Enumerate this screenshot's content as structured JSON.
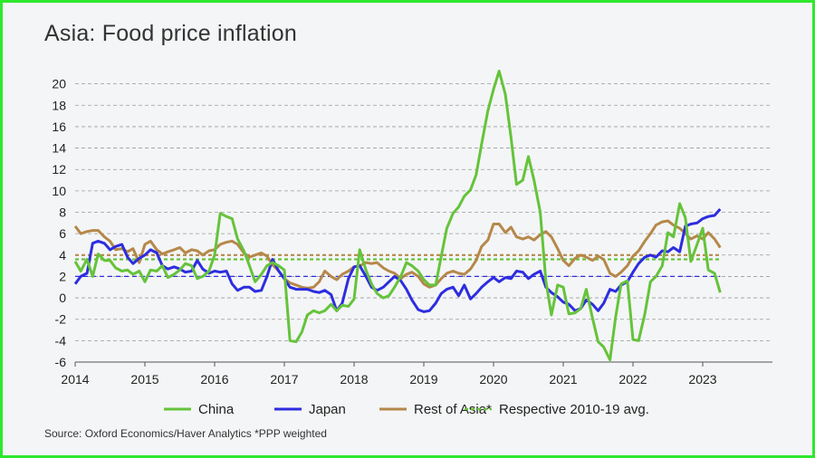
{
  "chart_data": {
    "type": "line",
    "title": "Asia: Food price inflation",
    "source": "Source: Oxford Economics/Haver Analytics *PPP weighted",
    "xlabel": "",
    "ylabel": "",
    "ylim": [
      -6,
      22
    ],
    "yticks": [
      "-6",
      "-4",
      "-2",
      "0",
      "2",
      "4",
      "6",
      "8",
      "10",
      "12",
      "14",
      "16",
      "18",
      "20"
    ],
    "xlim": [
      2014,
      2024
    ],
    "xticks": [
      "2014",
      "2015",
      "2016",
      "2017",
      "2018",
      "2019",
      "2020",
      "2021",
      "2022",
      "2023"
    ],
    "grid": "horizontal dashed",
    "legend_position": "bottom",
    "series": [
      {
        "name": "China",
        "color": "#65c33b",
        "x": [
          2014.0,
          2014.08,
          2014.17,
          2014.25,
          2014.33,
          2014.42,
          2014.5,
          2014.58,
          2014.67,
          2014.75,
          2014.83,
          2014.92,
          2015.0,
          2015.08,
          2015.17,
          2015.25,
          2015.33,
          2015.42,
          2015.5,
          2015.58,
          2015.67,
          2015.75,
          2015.83,
          2015.92,
          2016.0,
          2016.08,
          2016.17,
          2016.25,
          2016.33,
          2016.42,
          2016.5,
          2016.58,
          2016.67,
          2016.75,
          2016.83,
          2016.92,
          2017.0,
          2017.08,
          2017.17,
          2017.25,
          2017.33,
          2017.42,
          2017.5,
          2017.58,
          2017.67,
          2017.75,
          2017.83,
          2017.92,
          2018.0,
          2018.08,
          2018.17,
          2018.25,
          2018.33,
          2018.42,
          2018.5,
          2018.58,
          2018.67,
          2018.75,
          2018.83,
          2018.92,
          2019.0,
          2019.08,
          2019.17,
          2019.25,
          2019.33,
          2019.42,
          2019.5,
          2019.58,
          2019.67,
          2019.75,
          2019.83,
          2019.92,
          2020.0,
          2020.08,
          2020.17,
          2020.25,
          2020.33,
          2020.42,
          2020.5,
          2020.58,
          2020.67,
          2020.75,
          2020.83,
          2020.92,
          2021.0,
          2021.08,
          2021.17,
          2021.25,
          2021.33,
          2021.42,
          2021.5,
          2021.58,
          2021.67,
          2021.75,
          2021.83,
          2021.92,
          2022.0,
          2022.08,
          2022.17,
          2022.25,
          2022.33,
          2022.42,
          2022.5,
          2022.58,
          2022.67,
          2022.75,
          2022.83,
          2022.92,
          2023.0,
          2023.08,
          2023.17,
          2023.25
        ],
        "values": [
          3.4,
          2.5,
          3.6,
          2.0,
          4.1,
          3.5,
          3.5,
          2.8,
          2.5,
          2.6,
          2.2,
          2.5,
          1.5,
          2.6,
          2.5,
          3.0,
          1.9,
          2.2,
          2.6,
          3.2,
          3.0,
          1.8,
          2.0,
          2.5,
          4.0,
          7.9,
          7.6,
          7.4,
          5.5,
          4.4,
          3.0,
          1.5,
          2.2,
          3.0,
          3.3,
          3.0,
          2.6,
          -4.0,
          -4.1,
          -3.2,
          -1.6,
          -1.2,
          -1.4,
          -1.2,
          -0.6,
          -1.2,
          -0.7,
          -0.8,
          -0.1,
          4.5,
          2.6,
          1.3,
          0.4,
          0.0,
          0.2,
          1.0,
          2.0,
          3.3,
          3.0,
          2.5,
          1.7,
          1.2,
          1.2,
          3.9,
          6.5,
          7.9,
          8.5,
          9.5,
          10.1,
          11.5,
          14.4,
          17.5,
          19.5,
          21.2,
          19.0,
          15.0,
          10.6,
          11.0,
          13.2,
          11.0,
          8.0,
          1.6,
          -1.6,
          1.2,
          1.0,
          -1.5,
          -1.4,
          -1.0,
          0.8,
          -1.9,
          -4.1,
          -4.6,
          -5.8,
          -1.8,
          1.3,
          1.6,
          -3.9,
          -4.0,
          -1.5,
          1.5,
          2.0,
          3.0,
          6.1,
          5.7,
          8.8,
          7.5,
          3.4,
          5.0,
          6.5,
          2.6,
          2.3,
          0.5
        ]
      },
      {
        "name": "Japan",
        "color": "#2d2de0",
        "x": [
          2014.0,
          2014.08,
          2014.17,
          2014.25,
          2014.33,
          2014.42,
          2014.5,
          2014.58,
          2014.67,
          2014.75,
          2014.83,
          2014.92,
          2015.0,
          2015.08,
          2015.17,
          2015.25,
          2015.33,
          2015.42,
          2015.5,
          2015.58,
          2015.67,
          2015.75,
          2015.83,
          2015.92,
          2016.0,
          2016.08,
          2016.17,
          2016.25,
          2016.33,
          2016.42,
          2016.5,
          2016.58,
          2016.67,
          2016.75,
          2016.83,
          2016.92,
          2017.0,
          2017.08,
          2017.17,
          2017.25,
          2017.33,
          2017.42,
          2017.5,
          2017.58,
          2017.67,
          2017.75,
          2017.83,
          2017.92,
          2018.0,
          2018.08,
          2018.17,
          2018.25,
          2018.33,
          2018.42,
          2018.5,
          2018.58,
          2018.67,
          2018.75,
          2018.83,
          2018.92,
          2019.0,
          2019.08,
          2019.17,
          2019.25,
          2019.33,
          2019.42,
          2019.5,
          2019.58,
          2019.67,
          2019.75,
          2019.83,
          2019.92,
          2020.0,
          2020.08,
          2020.17,
          2020.25,
          2020.33,
          2020.42,
          2020.5,
          2020.58,
          2020.67,
          2020.75,
          2020.83,
          2020.92,
          2021.0,
          2021.08,
          2021.17,
          2021.25,
          2021.33,
          2021.42,
          2021.5,
          2021.58,
          2021.67,
          2021.75,
          2021.83,
          2021.92,
          2022.0,
          2022.08,
          2022.17,
          2022.25,
          2022.33,
          2022.42,
          2022.5,
          2022.58,
          2022.67,
          2022.75,
          2022.83,
          2022.92,
          2023.0,
          2023.08,
          2023.17,
          2023.25
        ],
        "values": [
          1.3,
          2.0,
          2.3,
          5.1,
          5.3,
          5.1,
          4.5,
          4.8,
          5.0,
          3.8,
          3.2,
          3.7,
          4.0,
          4.5,
          4.2,
          3.0,
          2.7,
          2.9,
          2.7,
          2.4,
          2.5,
          3.5,
          2.7,
          2.3,
          2.5,
          2.4,
          2.5,
          1.3,
          0.7,
          1.0,
          1.0,
          0.6,
          0.7,
          2.0,
          3.6,
          2.5,
          1.8,
          1.0,
          0.8,
          0.8,
          0.8,
          0.6,
          0.5,
          0.7,
          0.3,
          -1.2,
          -0.5,
          1.8,
          2.9,
          3.0,
          2.0,
          1.0,
          0.7,
          1.0,
          1.5,
          2.0,
          1.6,
          0.8,
          -0.2,
          -1.1,
          -1.3,
          -1.2,
          -0.5,
          0.4,
          0.8,
          1.0,
          0.2,
          1.2,
          -0.1,
          0.4,
          1.0,
          1.5,
          1.9,
          1.5,
          1.9,
          1.8,
          2.5,
          2.4,
          1.8,
          2.2,
          2.5,
          1.0,
          0.5,
          0.1,
          -0.4,
          -0.6,
          -1.2,
          -1.0,
          -0.2,
          -0.6,
          -1.2,
          -0.5,
          0.8,
          0.6,
          1.2,
          1.5,
          2.4,
          3.2,
          3.8,
          4.0,
          3.8,
          4.4,
          4.3,
          4.7,
          4.3,
          6.7,
          6.9,
          7.0,
          7.4,
          7.6,
          7.7,
          8.3
        ]
      },
      {
        "name": "Rest of Asia*",
        "color": "#b5884a",
        "x": [
          2014.0,
          2014.08,
          2014.17,
          2014.25,
          2014.33,
          2014.42,
          2014.5,
          2014.58,
          2014.67,
          2014.75,
          2014.83,
          2014.92,
          2015.0,
          2015.08,
          2015.17,
          2015.25,
          2015.33,
          2015.42,
          2015.5,
          2015.58,
          2015.67,
          2015.75,
          2015.83,
          2015.92,
          2016.0,
          2016.08,
          2016.17,
          2016.25,
          2016.33,
          2016.42,
          2016.5,
          2016.58,
          2016.67,
          2016.75,
          2016.83,
          2016.92,
          2017.0,
          2017.08,
          2017.17,
          2017.25,
          2017.33,
          2017.42,
          2017.5,
          2017.58,
          2017.67,
          2017.75,
          2017.83,
          2017.92,
          2018.0,
          2018.08,
          2018.17,
          2018.25,
          2018.33,
          2018.42,
          2018.5,
          2018.58,
          2018.67,
          2018.75,
          2018.83,
          2018.92,
          2019.0,
          2019.08,
          2019.17,
          2019.25,
          2019.33,
          2019.42,
          2019.5,
          2019.58,
          2019.67,
          2019.75,
          2019.83,
          2019.92,
          2020.0,
          2020.08,
          2020.17,
          2020.25,
          2020.33,
          2020.42,
          2020.5,
          2020.58,
          2020.67,
          2020.75,
          2020.83,
          2020.92,
          2021.0,
          2021.08,
          2021.17,
          2021.25,
          2021.33,
          2021.42,
          2021.5,
          2021.58,
          2021.67,
          2021.75,
          2021.83,
          2021.92,
          2022.0,
          2022.08,
          2022.17,
          2022.25,
          2022.33,
          2022.42,
          2022.5,
          2022.58,
          2022.67,
          2022.75,
          2022.83,
          2022.92,
          2023.0,
          2023.08,
          2023.17,
          2023.25
        ],
        "values": [
          6.7,
          6.0,
          6.2,
          6.3,
          6.3,
          5.7,
          5.3,
          4.5,
          4.6,
          4.3,
          4.6,
          3.3,
          5.0,
          5.3,
          4.5,
          4.1,
          4.3,
          4.5,
          4.7,
          4.2,
          4.5,
          4.4,
          4.0,
          4.4,
          4.5,
          5.0,
          5.2,
          5.3,
          5.0,
          4.2,
          3.8,
          4.0,
          4.2,
          3.9,
          3.1,
          2.5,
          1.8,
          1.4,
          1.2,
          1.0,
          0.9,
          1.0,
          1.5,
          2.5,
          2.0,
          1.7,
          2.2,
          2.5,
          2.9,
          3.0,
          3.3,
          3.2,
          3.3,
          2.8,
          2.5,
          2.3,
          1.8,
          2.2,
          2.4,
          2.0,
          1.3,
          1.0,
          1.2,
          1.8,
          2.3,
          2.5,
          2.3,
          2.2,
          2.7,
          3.5,
          4.8,
          5.4,
          6.9,
          6.9,
          6.1,
          6.6,
          5.7,
          5.5,
          5.7,
          5.4,
          5.9,
          6.2,
          5.7,
          4.6,
          3.5,
          3.0,
          3.7,
          4.0,
          3.8,
          3.5,
          3.9,
          3.6,
          2.3,
          2.0,
          2.4,
          3.0,
          3.9,
          4.4,
          5.3,
          6.0,
          6.8,
          7.1,
          7.2,
          6.8,
          6.5,
          6.0,
          5.5,
          5.8,
          5.5,
          6.1,
          5.5,
          4.7
        ]
      },
      {
        "name": "Respective 2010-19 avg.",
        "color": "#65c33b",
        "style": "dotted",
        "x": [
          2014.0,
          2023.25
        ],
        "values": [
          3.6,
          3.6
        ]
      },
      {
        "name": "Rest of Asia 2010-19 avg.",
        "color": "#b5884a",
        "style": "dotted",
        "legend": false,
        "x": [
          2014.0,
          2023.25
        ],
        "values": [
          4.0,
          4.0
        ]
      },
      {
        "name": "Japan 2010-19 avg.",
        "color": "#2d2de0",
        "style": "dashed",
        "legend": false,
        "x": [
          2014.0,
          2023.25
        ],
        "values": [
          2.0,
          2.0
        ]
      }
    ]
  }
}
